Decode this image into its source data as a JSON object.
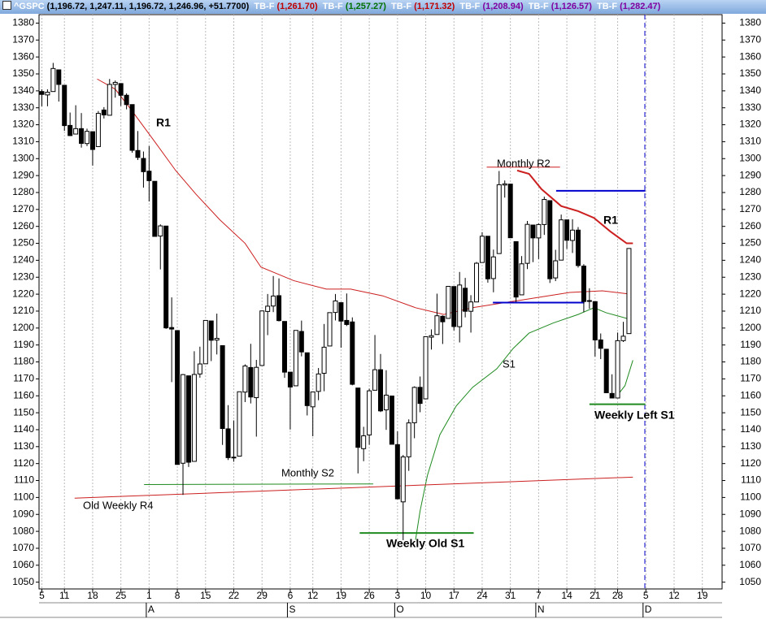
{
  "header": {
    "symbol": "^GSPC",
    "quote": "(1,196.72, 1,247.11, 1,196.72, 1,246.96, +51.7700)",
    "studies": [
      {
        "name": "TB-F",
        "value": "(1,261.70)",
        "color": "#c00000"
      },
      {
        "name": "TB-F",
        "value": "(1,257.27)",
        "color": "#007000"
      },
      {
        "name": "TB-F",
        "value": "(1,171.32)",
        "color": "#c00000"
      },
      {
        "name": "TB-F",
        "value": "(1,208.94)",
        "color": "#8000a0"
      },
      {
        "name": "TB-F",
        "value": "(1,126.57)",
        "color": "#8000a0"
      },
      {
        "name": "TB-F",
        "value": "(1,282.47)",
        "color": "#8000a0"
      }
    ]
  },
  "chart_data": {
    "type": "candlestick",
    "categories": [
      "5",
      null,
      null,
      null,
      "11",
      null,
      null,
      null,
      null,
      "18",
      null,
      null,
      null,
      null,
      "25",
      null,
      null,
      null,
      null,
      "1",
      null,
      null,
      null,
      null,
      "8",
      null,
      null,
      null,
      null,
      "15",
      null,
      null,
      null,
      null,
      "22",
      null,
      null,
      null,
      null,
      "29",
      null,
      null,
      null,
      null,
      "6",
      null,
      null,
      null,
      "12",
      null,
      null,
      null,
      null,
      "19",
      null,
      null,
      null,
      null,
      "26",
      null,
      null,
      null,
      null,
      "3",
      null,
      null,
      null,
      null,
      "10",
      null,
      null,
      null,
      null,
      "17",
      null,
      null,
      null,
      null,
      "24",
      null,
      null,
      null,
      null,
      "31",
      null,
      null,
      null,
      null,
      "7",
      null,
      null,
      null,
      null,
      "14",
      null,
      null,
      null,
      null,
      "21",
      null,
      null,
      null,
      "28",
      null,
      null,
      null,
      null,
      "5",
      null,
      null,
      null,
      null,
      "12",
      null,
      null,
      null,
      null,
      "19",
      null,
      null,
      null
    ],
    "months": [
      null,
      null,
      null,
      null,
      null,
      null,
      null,
      null,
      null,
      null,
      null,
      null,
      null,
      null,
      null,
      null,
      null,
      null,
      null,
      "A",
      null,
      null,
      null,
      null,
      null,
      null,
      null,
      null,
      null,
      null,
      null,
      null,
      null,
      null,
      null,
      null,
      null,
      null,
      null,
      null,
      null,
      null,
      null,
      null,
      "S",
      null,
      null,
      null,
      null,
      null,
      null,
      null,
      null,
      null,
      null,
      null,
      null,
      null,
      null,
      null,
      null,
      null,
      null,
      "O",
      null,
      null,
      null,
      null,
      null,
      null,
      null,
      null,
      null,
      null,
      null,
      null,
      null,
      null,
      null,
      null,
      null,
      null,
      null,
      null,
      null,
      null,
      null,
      null,
      "N",
      null,
      null,
      null,
      null,
      null,
      null,
      null,
      null,
      null,
      null,
      null,
      null,
      null,
      null,
      null,
      null,
      null,
      null,
      "D",
      null,
      null,
      null,
      null,
      null,
      null,
      null,
      null,
      null,
      null,
      null,
      null,
      null
    ],
    "open": [
      1339.6,
      1337.6,
      1339.6,
      1352.4,
      1343.3,
      1319.6,
      1314.5,
      1317.7,
      1308.9,
      1315.9,
      1307.1,
      1328.7,
      1325.6,
      1343.8,
      1344.3,
      1337.4,
      1331.9,
      1304.8,
      1300.1,
      1292.6,
      1286.6,
      1254.3,
      1260.2,
      1200.3,
      1198.5,
      1120.2,
      1171.8,
      1121.3,
      1172.9,
      1178.9,
      1204.2,
      1192.9,
      1189.6,
      1140.5,
      1123.6,
      1124.4,
      1162.2,
      1176.7,
      1158.9,
      1177.9,
      1209.8,
      1213.0,
      1219.1,
      1203.9,
      1173.97,
      1165.9,
      1197.98,
      1185.4,
      1153.5,
      1162.6,
      1173.3,
      1189.4,
      1209.2,
      1214.99,
      1204.5,
      1203.6,
      1164.6,
      1128.8,
      1136.9,
      1163.3,
      1175.4,
      1151.7,
      1159.9,
      1131.2,
      1097.4,
      1124.0,
      1144.1,
      1165.0,
      1158.2,
      1194.6,
      1196.2,
      1206.96,
      1205.7,
      1224.5,
      1200.8,
      1223.5,
      1209.9,
      1215.4,
      1238.7,
      1254.2,
      1229.2,
      1243.97,
      1284.4,
      1284.96,
      1251.0,
      1219.6,
      1238.2,
      1260.8,
      1253.2,
      1261.1,
      1275.2,
      1229.6,
      1240.1,
      1263.85,
      1251.7,
      1257.8,
      1236.6,
      1216.2,
      1215.6,
      1192.98,
      1187.5,
      1161.4,
      1158.7,
      1192.56,
      1196.72,
      null,
      null,
      null,
      null,
      null,
      null,
      null,
      null,
      null,
      null,
      null,
      null,
      null,
      null,
      null,
      null
    ],
    "high": [
      1340.9,
      1340.9,
      1356.5,
      1352.4,
      1343.3,
      1327.2,
      1331.5,
      1326.9,
      1317.7,
      1315.9,
      1328.1,
      1330.4,
      1347.0,
      1346.1,
      1344.3,
      1338.5,
      1331.9,
      1316.3,
      1304.2,
      1307.4,
      1286.6,
      1261.2,
      1260.2,
      1218.1,
      1198.5,
      1172.9,
      1171.8,
      1186.3,
      1189.0,
      1204.5,
      1204.2,
      1208.5,
      1189.6,
      1154.5,
      1145.5,
      1162.4,
      1178.6,
      1190.7,
      1181.2,
      1210.3,
      1220.1,
      1230.7,
      1229.3,
      1203.9,
      1173.97,
      1198.6,
      1204.4,
      1185.4,
      1162.5,
      1176.4,
      1202.4,
      1209.1,
      1220.1,
      1214.99,
      1220.4,
      1206.3,
      1164.6,
      1141.7,
      1164.2,
      1195.9,
      1184.7,
      1175.1,
      1159.9,
      1138.99,
      1125.1,
      1146.1,
      1165.6,
      1171.4,
      1194.9,
      1199.2,
      1220.3,
      1207.5,
      1224.6,
      1224.5,
      1233.1,
      1229.6,
      1219.4,
      1239.0,
      1256.6,
      1254.2,
      1246.3,
      1292.7,
      1287.1,
      1284.96,
      1251.0,
      1242.5,
      1263.2,
      1260.8,
      1261.7,
      1277.55,
      1275.2,
      1246.2,
      1266.98,
      1263.85,
      1264.25,
      1259.6,
      1237.7,
      1223.5,
      1215.6,
      1196.8,
      1187.5,
      1172.7,
      1197.35,
      1203.67,
      1247.11,
      null,
      null,
      null,
      null,
      null,
      null,
      null,
      null,
      null,
      null,
      null,
      null,
      null,
      null,
      null,
      null
    ],
    "low": [
      1330.9,
      1330.9,
      1339.6,
      1333.7,
      1316.4,
      1313.3,
      1314.5,
      1306.5,
      1307.4,
      1295.9,
      1307.1,
      1323.7,
      1325.6,
      1336.0,
      1331.1,
      1329.1,
      1303.5,
      1299.2,
      1282.9,
      1274.7,
      1254.0,
      1234.6,
      1199.5,
      1168.1,
      1119.3,
      1101.5,
      1118.0,
      1121.3,
      1170.7,
      1178.9,
      1180.5,
      1184.4,
      1131.0,
      1122.1,
      1121.1,
      1124.4,
      1156.3,
      1155.5,
      1135.9,
      1177.9,
      1195.8,
      1209.4,
      1203.9,
      1170.6,
      1140.1,
      1165.9,
      1183.3,
      1148.4,
      1136.1,
      1157.4,
      1162.7,
      1189.4,
      1204.5,
      1188.4,
      1201.2,
      1166.2,
      1114.2,
      1121.4,
      1131.1,
      1163.3,
      1150.4,
      1139.9,
      1131.3,
      1098.9,
      1074.8,
      1115.7,
      1134.95,
      1150.3,
      1158.2,
      1187.3,
      1196.2,
      1190.6,
      1205.7,
      1198.6,
      1191.5,
      1206.3,
      1197.3,
      1215.4,
      1238.7,
      1226.8,
      1221.1,
      1243.97,
      1277.0,
      1253.2,
      1215.4,
      1219.6,
      1234.8,
      1238.9,
      1240.75,
      1254.99,
      1226.6,
      1227.7,
      1240.1,
      1246.7,
      1244.3,
      1235.7,
      1209.4,
      1211.4,
      1183.2,
      1181.65,
      1161.8,
      1158.7,
      1158.7,
      1191.8,
      1196.72,
      null,
      null,
      null,
      null,
      null,
      null,
      null,
      null,
      null,
      null,
      null,
      null,
      null,
      null,
      null,
      null
    ],
    "close": [
      1337.9,
      1339.2,
      1353.2,
      1343.8,
      1319.5,
      1313.6,
      1317.7,
      1309.0,
      1316.1,
      1305.4,
      1326.7,
      1325.8,
      1343.8,
      1345.0,
      1337.4,
      1331.9,
      1304.9,
      1300.7,
      1292.3,
      1287.0,
      1254.1,
      1260.3,
      1200.1,
      1199.4,
      1119.5,
      1172.5,
      1120.8,
      1172.6,
      1178.8,
      1204.5,
      1192.8,
      1193.9,
      1140.7,
      1123.5,
      1123.8,
      1162.4,
      1177.6,
      1159.3,
      1176.8,
      1210.1,
      1212.9,
      1218.9,
      1204.4,
      1173.97,
      1165.2,
      1198.6,
      1185.9,
      1154.2,
      1162.3,
      1172.9,
      1188.7,
      1209.1,
      1216.0,
      1204.1,
      1202.1,
      1166.8,
      1129.6,
      1136.4,
      1162.95,
      1175.4,
      1151.1,
      1160.4,
      1131.4,
      1099.2,
      1123.95,
      1144.0,
      1164.97,
      1155.5,
      1194.9,
      1195.5,
      1207.25,
      1203.7,
      1224.6,
      1200.9,
      1225.4,
      1209.9,
      1215.4,
      1238.25,
      1254.2,
      1229.05,
      1242.0,
      1284.6,
      1285.1,
      1253.3,
      1218.3,
      1237.9,
      1261.2,
      1253.2,
      1261.1,
      1275.9,
      1229.1,
      1239.7,
      1263.85,
      1251.8,
      1257.8,
      1236.9,
      1215.65,
      1215.75,
      1192.98,
      1188.04,
      1161.8,
      1158.7,
      1192.55,
      1195.19,
      1246.96,
      null,
      null,
      null,
      null,
      null,
      null,
      null,
      null,
      null,
      null,
      null,
      null,
      null,
      null,
      null,
      null
    ],
    "ylim": [
      1046,
      1385
    ],
    "yticks": [
      1050,
      1060,
      1070,
      1080,
      1090,
      1100,
      1110,
      1120,
      1130,
      1140,
      1150,
      1160,
      1170,
      1180,
      1190,
      1200,
      1210,
      1220,
      1230,
      1240,
      1250,
      1260,
      1270,
      1280,
      1290,
      1300,
      1310,
      1320,
      1330,
      1340,
      1350,
      1360,
      1370,
      1380
    ],
    "up_color": "#ffffff",
    "down_color": "#000000",
    "overlays": [
      {
        "name": "R1",
        "color": "#cc1f1f",
        "width": 1,
        "x": [
          9.8,
          13,
          15.8,
          20,
          23.7,
          27.3,
          31.5,
          36,
          38.8,
          44.6,
          50.4,
          54.7,
          60.4,
          66.2,
          71.2,
          76.3,
          82,
          87.8,
          93.5,
          99.3,
          104.3
        ],
        "values": [
          1347,
          1341,
          1329,
          1310,
          1293,
          1279,
          1264,
          1250,
          1236,
          1228,
          1223,
          1223,
          1219,
          1212,
          1208,
          1212,
          1215,
          1218,
          1221,
          1222,
          1220
        ]
      },
      {
        "name": "R1",
        "color": "#cc1f1f",
        "width": 2,
        "x": [
          84.2,
          86.3,
          88.5,
          92,
          95,
          97.8,
          100.7,
          103.6,
          104.7
        ],
        "values": [
          1293,
          1291,
          1282,
          1272,
          1269,
          1265,
          1257,
          1250,
          1250
        ]
      },
      {
        "name": "S1",
        "color": "#1f8a1f",
        "width": 1,
        "x": [
          66.2,
          67,
          68.3,
          70.5,
          73.4,
          76.3,
          80.6,
          83.5,
          86.3,
          90.6,
          95,
          97.8,
          100,
          102.2,
          104.3
        ],
        "values": [
          1075,
          1092,
          1113,
          1137,
          1154,
          1165,
          1176,
          1188,
          1197,
          1203,
          1208,
          1212,
          1209,
          1207,
          1205
        ]
      },
      {
        "color": "#1f8a1f",
        "width": 1,
        "x": [
          101.9,
          103.3,
          104.7
        ],
        "values": [
          1160,
          1166,
          1181
        ]
      },
      {
        "name": "Old Weekly R4",
        "color": "#cc1f1f",
        "width": 1,
        "x": [
          5.8,
          104.7
        ],
        "values": [
          1099.6,
          1112
        ]
      },
      {
        "name": "Monthly S2",
        "color": "#1f8a1f",
        "width": 1,
        "x": [
          18.1,
          58.7
        ],
        "values": [
          1107.6,
          1108
        ]
      },
      {
        "name": "Monthly R2",
        "color": "#cc1f1f",
        "width": 1,
        "x": [
          78.8,
          91.8
        ],
        "values": [
          1295,
          1295
        ]
      },
      {
        "color": "#0000cc",
        "width": 2,
        "x": [
          91.1,
          106.9
        ],
        "values": [
          1281,
          1281
        ]
      },
      {
        "color": "#0000cc",
        "width": 2,
        "x": [
          79.9,
          96.1
        ],
        "values": [
          1215,
          1215
        ]
      },
      {
        "name": "Weekly Left S1",
        "color": "#1f8a1f",
        "width": 2,
        "x": [
          97,
          106.9
        ],
        "values": [
          1155,
          1155
        ]
      },
      {
        "name": "Weekly Old S1",
        "color": "#1f8a1f",
        "width": 2,
        "x": [
          56.3,
          76.5
        ],
        "values": [
          1079,
          1079
        ]
      }
    ]
  }
}
